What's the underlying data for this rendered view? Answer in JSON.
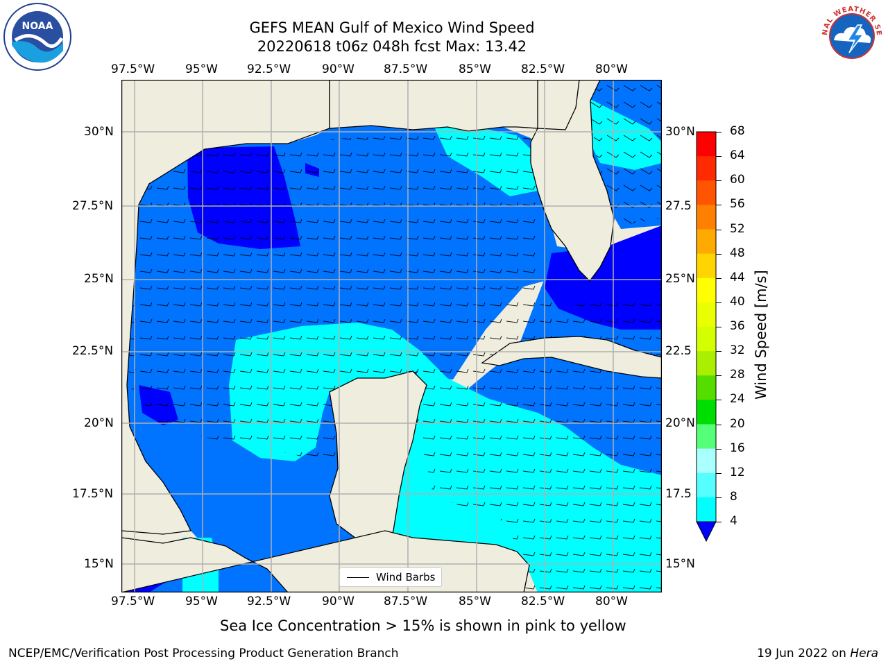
{
  "title": {
    "line1": "GEFS MEAN Gulf of Mexico Wind Speed",
    "line2": "20220618 t06z 048h fcst   Max: 13.42"
  },
  "logos": {
    "left": {
      "text": "NOAA",
      "icon": "noaa-logo"
    },
    "right": {
      "text": "NATIONAL WEATHER SERVICE",
      "icon": "nws-logo"
    }
  },
  "map": {
    "lon_labels": [
      "97.5°W",
      "95°W",
      "92.5°W",
      "90°W",
      "87.5°W",
      "85°W",
      "82.5°W",
      "80°W"
    ],
    "lat_labels_left": [
      "30°N",
      "27.5°N",
      "25°N",
      "22.5°N",
      "20°N",
      "17.5°N",
      "15°N"
    ],
    "lat_labels_right": [
      "30°N",
      "27.5",
      "25°N",
      "22.5",
      "20°N",
      "17.5",
      "15°N"
    ],
    "land_color": "#efedde",
    "grid_color": "#b0b0b0",
    "legend_label": "Wind Barbs",
    "wind_field": {
      "description_levels_ms": [
        4,
        8,
        12
      ],
      "band_colors": {
        "4-8": "#0073ff",
        "8-12": "#00ffff",
        "below-4": "#0000ff"
      }
    }
  },
  "colorbar": {
    "label": "Wind Speed [m/s]",
    "ticks": [
      "68",
      "64",
      "60",
      "56",
      "52",
      "48",
      "44",
      "40",
      "36",
      "32",
      "28",
      "24",
      "20",
      "16",
      "12",
      "8",
      "4"
    ],
    "colors_top_to_bottom": [
      "#ff0000",
      "#ff2a00",
      "#ff5500",
      "#ff8000",
      "#ffaa00",
      "#ffd400",
      "#ffff00",
      "#eaff00",
      "#d4ff00",
      "#aaee00",
      "#55dd00",
      "#00dd00",
      "#55ff77",
      "#aaffff",
      "#55ffff",
      "#00ffff",
      "#0073ff"
    ],
    "extend_color": "#0000ff"
  },
  "note": "Sea Ice Concentration > 15% is shown in pink to yellow",
  "footer": {
    "left": "NCEP/EMC/Verification Post Processing Product Generation Branch",
    "right_date": "19 Jun 2022 on ",
    "right_host": "Hera"
  }
}
